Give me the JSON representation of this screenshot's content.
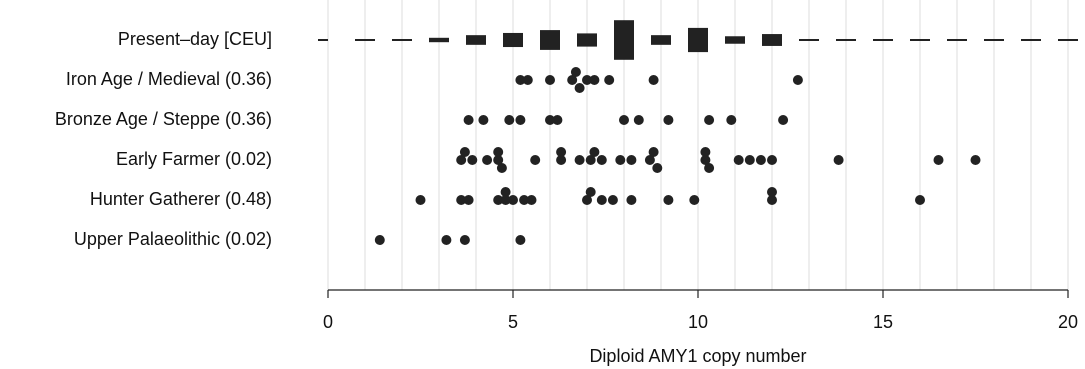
{
  "chart_data": {
    "type": "scatter",
    "title": "",
    "xlabel": "Diploid AMY1 copy number",
    "ylabel": "",
    "xlim": [
      0,
      20
    ],
    "xticks": [
      0,
      5,
      10,
      15,
      20
    ],
    "grid": "vertical lines at each integer",
    "colors": {
      "points": "#222222",
      "bars": "#222222",
      "grid": "#dcdcdc"
    },
    "reference": {
      "name": "Present–day [CEU]",
      "type": "bar-frequency",
      "x": [
        1,
        2,
        3,
        4,
        5,
        6,
        7,
        8,
        9,
        10,
        11,
        12,
        13,
        14,
        15,
        16,
        17,
        18,
        19,
        20
      ],
      "relative_frequency": [
        0.02,
        0.02,
        0.1,
        0.22,
        0.32,
        0.45,
        0.3,
        0.9,
        0.22,
        0.55,
        0.17,
        0.27,
        0.02,
        0.02,
        0.02,
        0.02,
        0.02,
        0.02,
        0.02,
        0.02
      ]
    },
    "series": [
      {
        "name": "Iron Age / Medieval (0.36)",
        "x": [
          5.2,
          5.4,
          6.0,
          6.6,
          6.7,
          6.8,
          7.0,
          7.2,
          7.6,
          8.8,
          12.7
        ]
      },
      {
        "name": "Bronze Age / Steppe (0.36)",
        "x": [
          3.8,
          4.2,
          4.9,
          5.2,
          6.0,
          6.2,
          8.0,
          8.4,
          9.2,
          10.3,
          10.9,
          12.3
        ]
      },
      {
        "name": "Early Farmer (0.02)",
        "x": [
          3.6,
          3.7,
          3.9,
          4.3,
          4.6,
          4.6,
          4.7,
          5.6,
          6.3,
          6.3,
          6.8,
          7.1,
          7.2,
          7.4,
          7.9,
          8.2,
          8.7,
          8.8,
          8.9,
          10.2,
          10.2,
          10.3,
          11.1,
          11.4,
          11.7,
          12.0,
          13.8,
          16.5,
          17.5
        ]
      },
      {
        "name": "Hunter Gatherer (0.48)",
        "x": [
          2.5,
          3.6,
          3.8,
          4.6,
          4.8,
          4.8,
          5.0,
          5.3,
          5.5,
          7.0,
          7.1,
          7.4,
          7.7,
          8.2,
          9.2,
          9.9,
          12.0,
          12.0,
          16.0
        ]
      },
      {
        "name": "Upper Palaeolithic (0.02)",
        "x": [
          1.4,
          3.2,
          3.7,
          5.2
        ]
      }
    ]
  }
}
